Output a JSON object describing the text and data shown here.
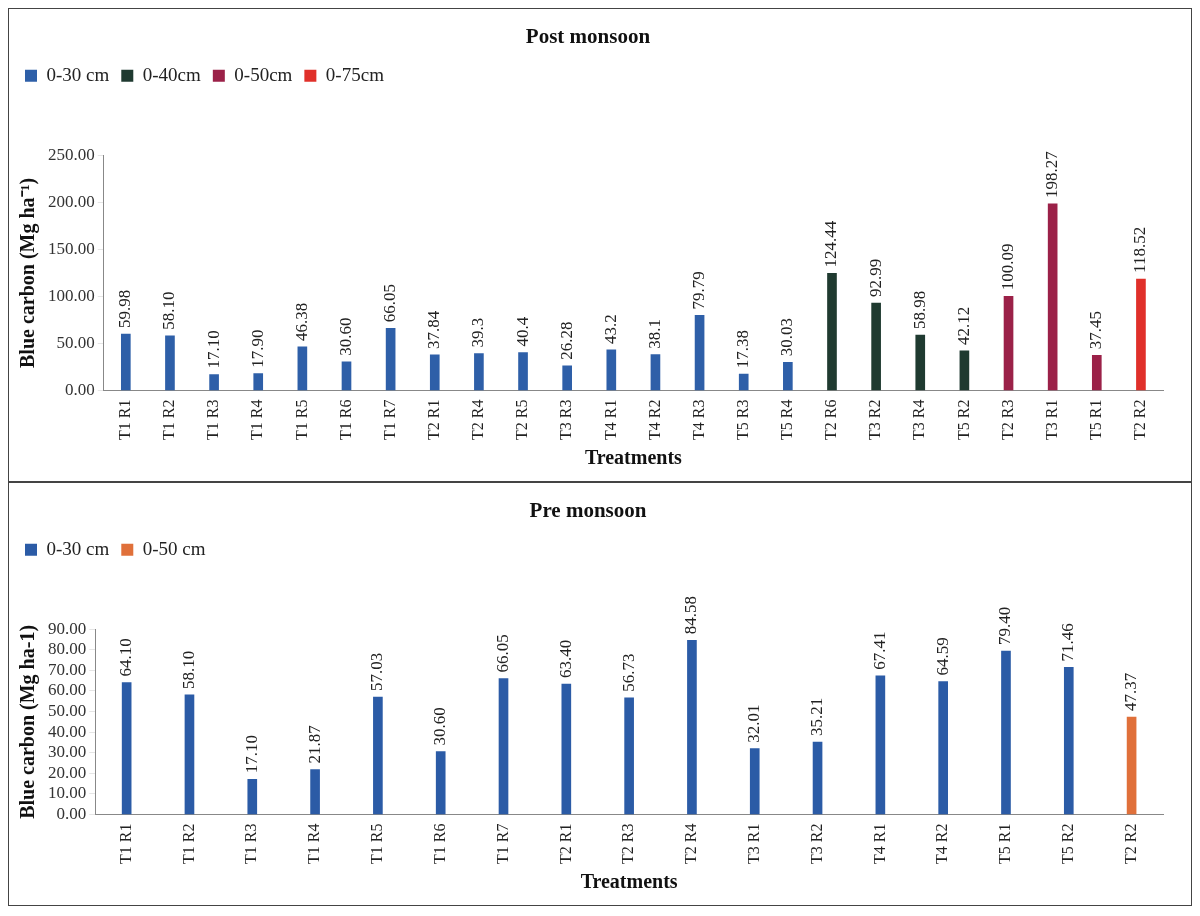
{
  "chart_data": [
    {
      "type": "bar",
      "title": "Post monsoon",
      "xlabel": "Treatments",
      "ylabel": "Blue carbon (Mg ha⁻¹)",
      "categories": [
        "T1 R1",
        "T1 R2",
        "T1 R3",
        "T1 R4",
        "T1 R5",
        "T1 R6",
        "T1 R7",
        "T2 R1",
        "T2 R4",
        "T2 R5",
        "T3 R3",
        "T4 R1",
        "T4 R2",
        "T4 R3",
        "T5 R3",
        "T5 R4",
        "T2 R6",
        "T3 R2",
        "T3 R4",
        "T5 R2",
        "T2 R3",
        "T3 R1",
        "T5 R1",
        "T2 R2"
      ],
      "series": [
        {
          "name": "0-30 cm",
          "color": "#2e5fa8",
          "values": [
            59.98,
            58.1,
            17.1,
            17.9,
            46.38,
            30.6,
            66.05,
            37.84,
            39.3,
            40.4,
            26.28,
            43.2,
            38.1,
            79.79,
            17.38,
            30.03,
            null,
            null,
            null,
            null,
            null,
            null,
            null,
            null
          ],
          "value_labels": [
            "59.98",
            "58.10",
            "17.10",
            "17.90",
            "46.38",
            "30.60",
            "66.05",
            "37.84",
            "39.3",
            "40.4",
            "26.28",
            "43.2",
            "38.1",
            "79.79",
            "17.38",
            "30.03",
            null,
            null,
            null,
            null,
            null,
            null,
            null,
            null
          ]
        },
        {
          "name": "0-40cm",
          "color": "#1f3a30",
          "values": [
            null,
            null,
            null,
            null,
            null,
            null,
            null,
            null,
            null,
            null,
            null,
            null,
            null,
            null,
            null,
            null,
            124.44,
            92.99,
            58.98,
            42.12,
            null,
            null,
            null,
            null
          ],
          "value_labels": [
            null,
            null,
            null,
            null,
            null,
            null,
            null,
            null,
            null,
            null,
            null,
            null,
            null,
            null,
            null,
            null,
            "124.44",
            "92.99",
            "58.98",
            "42.12",
            null,
            null,
            null,
            null
          ]
        },
        {
          "name": "0-50cm",
          "color": "#9b2148",
          "values": [
            null,
            null,
            null,
            null,
            null,
            null,
            null,
            null,
            null,
            null,
            null,
            null,
            null,
            null,
            null,
            null,
            null,
            null,
            null,
            null,
            100.09,
            198.27,
            37.45,
            null
          ],
          "value_labels": [
            null,
            null,
            null,
            null,
            null,
            null,
            null,
            null,
            null,
            null,
            null,
            null,
            null,
            null,
            null,
            null,
            null,
            null,
            null,
            null,
            "100.09",
            "198.27",
            "37.45",
            null
          ]
        },
        {
          "name": "0-75cm",
          "color": "#e0302a",
          "values": [
            null,
            null,
            null,
            null,
            null,
            null,
            null,
            null,
            null,
            null,
            null,
            null,
            null,
            null,
            null,
            null,
            null,
            null,
            null,
            null,
            null,
            null,
            null,
            118.52
          ],
          "value_labels": [
            null,
            null,
            null,
            null,
            null,
            null,
            null,
            null,
            null,
            null,
            null,
            null,
            null,
            null,
            null,
            null,
            null,
            null,
            null,
            null,
            null,
            null,
            null,
            "118.52"
          ]
        }
      ],
      "ylim": [
        0,
        250
      ],
      "yticks": [
        {
          "value": 0,
          "label": "0.00"
        },
        {
          "value": 50,
          "label": "50.00"
        },
        {
          "value": 100,
          "label": "100.00"
        },
        {
          "value": 150,
          "label": "150.00"
        },
        {
          "value": 200,
          "label": "200.00"
        },
        {
          "value": 250,
          "label": "250.00"
        }
      ],
      "grid": false,
      "legend": "top left"
    },
    {
      "type": "bar",
      "title": "Pre monsoon",
      "xlabel": "Treatments",
      "ylabel": "Blue carbon (Mg ha-1)",
      "categories": [
        "T1 R1",
        "T1 R2",
        "T1 R3",
        "T1 R4",
        "T1 R5",
        "T1 R6",
        "T1 R7",
        "T2 R1",
        "T2 R3",
        "T2 R4",
        "T3 R1",
        "T3 R2",
        "T4 R1",
        "T4 R2",
        "T5 R1",
        "T5 R2",
        "T2 R2"
      ],
      "series": [
        {
          "name": "0-30 cm",
          "color": "#2b5ba6",
          "values": [
            64.1,
            58.1,
            17.1,
            21.87,
            57.03,
            30.6,
            66.05,
            63.4,
            56.73,
            84.58,
            32.01,
            35.21,
            67.41,
            64.59,
            79.4,
            71.46,
            null
          ],
          "value_labels": [
            "64.10",
            "58.10",
            "17.10",
            "21.87",
            "57.03",
            "30.60",
            "66.05",
            "63.40",
            "56.73",
            "84.58",
            "32.01",
            "35.21",
            "67.41",
            "64.59",
            "79.40",
            "71.46",
            null
          ]
        },
        {
          "name": "0-50 cm",
          "color": "#e0703a",
          "values": [
            null,
            null,
            null,
            null,
            null,
            null,
            null,
            null,
            null,
            null,
            null,
            null,
            null,
            null,
            null,
            null,
            47.37
          ],
          "value_labels": [
            null,
            null,
            null,
            null,
            null,
            null,
            null,
            null,
            null,
            null,
            null,
            null,
            null,
            null,
            null,
            null,
            "47.37"
          ]
        }
      ],
      "ylim": [
        0,
        90
      ],
      "yticks": [
        {
          "value": 0,
          "label": "0.00"
        },
        {
          "value": 10,
          "label": "10.00"
        },
        {
          "value": 20,
          "label": "20.00"
        },
        {
          "value": 30,
          "label": "30.00"
        },
        {
          "value": 40,
          "label": "40.00"
        },
        {
          "value": 50,
          "label": "50.00"
        },
        {
          "value": 60,
          "label": "60.00"
        },
        {
          "value": 70,
          "label": "70.00"
        },
        {
          "value": 80,
          "label": "80.00"
        },
        {
          "value": 90,
          "label": "90.00"
        }
      ],
      "grid": false,
      "legend": "top left"
    }
  ]
}
